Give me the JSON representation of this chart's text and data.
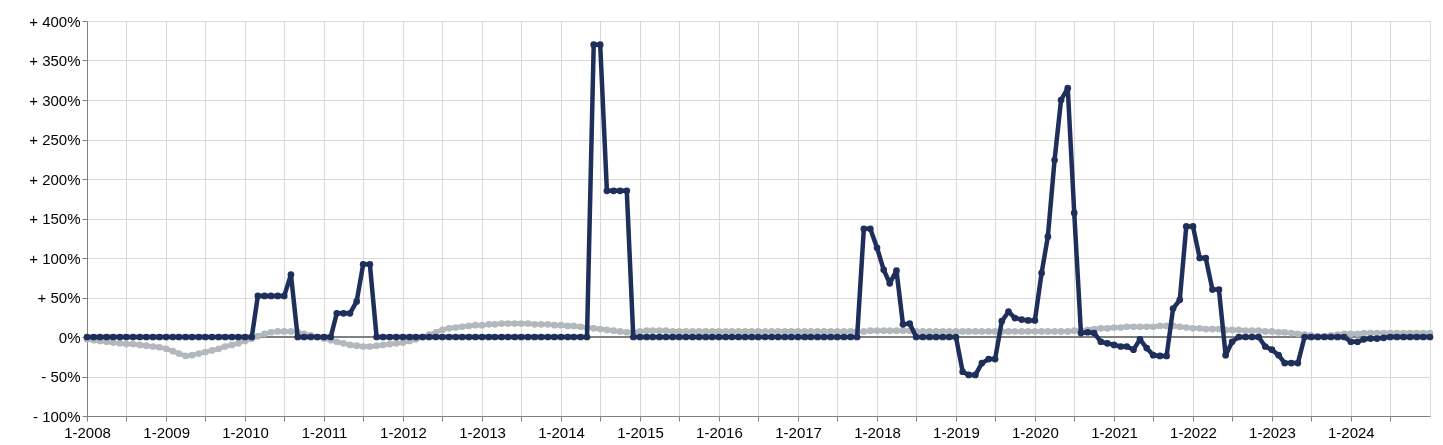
{
  "chart_data": {
    "type": "line",
    "marker": "circle",
    "grid": true,
    "x": [
      "2008-01",
      "2008-02",
      "2008-03",
      "2008-04",
      "2008-05",
      "2008-06",
      "2008-07",
      "2008-08",
      "2008-09",
      "2008-10",
      "2008-11",
      "2008-12",
      "2009-01",
      "2009-02",
      "2009-03",
      "2009-04",
      "2009-05",
      "2009-06",
      "2009-07",
      "2009-08",
      "2009-09",
      "2009-10",
      "2009-11",
      "2009-12",
      "2010-01",
      "2010-02",
      "2010-03",
      "2010-04",
      "2010-05",
      "2010-06",
      "2010-07",
      "2010-08",
      "2010-09",
      "2010-10",
      "2010-11",
      "2010-12",
      "2011-01",
      "2011-02",
      "2011-03",
      "2011-04",
      "2011-05",
      "2011-06",
      "2011-07",
      "2011-08",
      "2011-09",
      "2011-10",
      "2011-11",
      "2011-12",
      "2012-01",
      "2012-02",
      "2012-03",
      "2012-04",
      "2012-05",
      "2012-06",
      "2012-07",
      "2012-08",
      "2012-09",
      "2012-10",
      "2012-11",
      "2012-12",
      "2013-01",
      "2013-02",
      "2013-03",
      "2013-04",
      "2013-05",
      "2013-06",
      "2013-07",
      "2013-08",
      "2013-09",
      "2013-10",
      "2013-11",
      "2013-12",
      "2014-01",
      "2014-02",
      "2014-03",
      "2014-04",
      "2014-05",
      "2014-06",
      "2014-07",
      "2014-08",
      "2014-09",
      "2014-10",
      "2014-11",
      "2014-12",
      "2015-01",
      "2015-02",
      "2015-03",
      "2015-04",
      "2015-05",
      "2015-06",
      "2015-07",
      "2015-08",
      "2015-09",
      "2015-10",
      "2015-11",
      "2015-12",
      "2016-01",
      "2016-02",
      "2016-03",
      "2016-04",
      "2016-05",
      "2016-06",
      "2016-07",
      "2016-08",
      "2016-09",
      "2016-10",
      "2016-11",
      "2016-12",
      "2017-01",
      "2017-02",
      "2017-03",
      "2017-04",
      "2017-05",
      "2017-06",
      "2017-07",
      "2017-08",
      "2017-09",
      "2017-10",
      "2017-11",
      "2017-12",
      "2018-01",
      "2018-02",
      "2018-03",
      "2018-04",
      "2018-05",
      "2018-06",
      "2018-07",
      "2018-08",
      "2018-09",
      "2018-10",
      "2018-11",
      "2018-12",
      "2019-01",
      "2019-02",
      "2019-03",
      "2019-04",
      "2019-05",
      "2019-06",
      "2019-07",
      "2019-08",
      "2019-09",
      "2019-10",
      "2019-11",
      "2019-12",
      "2020-01",
      "2020-02",
      "2020-03",
      "2020-04",
      "2020-05",
      "2020-06",
      "2020-07",
      "2020-08",
      "2020-09",
      "2020-10",
      "2020-11",
      "2020-12",
      "2021-01",
      "2021-02",
      "2021-03",
      "2021-04",
      "2021-05",
      "2021-06",
      "2021-07",
      "2021-08",
      "2021-09",
      "2021-10",
      "2021-11",
      "2021-12",
      "2022-01",
      "2022-02",
      "2022-03",
      "2022-04",
      "2022-05",
      "2022-06",
      "2022-07",
      "2022-08",
      "2022-09",
      "2022-10",
      "2022-11",
      "2022-12",
      "2023-01",
      "2023-02",
      "2023-03",
      "2023-04",
      "2023-05",
      "2023-06",
      "2023-07",
      "2023-08",
      "2023-09",
      "2023-10",
      "2023-11",
      "2023-12",
      "2024-01",
      "2024-02",
      "2024-03",
      "2024-04",
      "2024-05",
      "2024-06",
      "2024-07",
      "2024-08",
      "2024-09",
      "2024-10",
      "2024-11",
      "2024-12",
      "2025-01"
    ],
    "series": [
      {
        "color": "#b3b8bd",
        "values": [
          -3,
          -4,
          -5,
          -6,
          -7,
          -8,
          -9,
          -9,
          -10,
          -11,
          -12,
          -13,
          -15,
          -18,
          -21,
          -24,
          -23,
          -21,
          -19,
          -17,
          -15,
          -12,
          -10,
          -8,
          -5,
          -2,
          1,
          4,
          6,
          7,
          7,
          7,
          6,
          4,
          2,
          0,
          -2,
          -4,
          -6,
          -8,
          -10,
          -11,
          -12,
          -12,
          -11,
          -10,
          -9,
          -8,
          -7,
          -5,
          -3,
          0,
          3,
          6,
          9,
          11,
          12,
          13,
          14,
          15,
          15,
          16,
          16,
          17,
          17,
          17,
          17,
          17,
          16,
          16,
          16,
          15,
          15,
          14,
          14,
          13,
          12,
          11,
          10,
          9,
          8,
          7,
          6,
          6,
          7,
          8,
          8,
          8,
          8,
          7,
          7,
          7,
          7,
          7,
          7,
          7,
          7,
          7,
          7,
          7,
          7,
          7,
          7,
          7,
          7,
          7,
          7,
          7,
          7,
          7,
          7,
          7,
          7,
          7,
          7,
          7,
          7,
          7,
          7,
          8,
          8,
          8,
          8,
          8,
          8,
          8,
          7,
          7,
          7,
          7,
          7,
          7,
          7,
          7,
          7,
          7,
          7,
          7,
          7,
          7,
          7,
          7,
          7,
          7,
          7,
          7,
          7,
          7,
          7,
          7,
          8,
          8,
          9,
          10,
          11,
          11,
          12,
          12,
          13,
          13,
          13,
          13,
          13,
          14,
          14,
          14,
          13,
          12,
          11,
          11,
          10,
          10,
          10,
          9,
          9,
          9,
          8,
          8,
          8,
          7,
          7,
          6,
          6,
          5,
          4,
          3,
          2,
          1,
          1,
          2,
          3,
          4,
          4,
          4,
          5,
          5,
          5,
          5,
          5,
          5,
          5,
          5,
          5,
          5,
          5
        ]
      },
      {
        "color": "#1f2f5c",
        "values": [
          0,
          0,
          0,
          0,
          0,
          0,
          0,
          0,
          0,
          0,
          0,
          0,
          0,
          0,
          0,
          0,
          0,
          0,
          0,
          0,
          0,
          0,
          0,
          0,
          0,
          0,
          52,
          52,
          52,
          52,
          52,
          79,
          0,
          0,
          0,
          0,
          0,
          0,
          30,
          30,
          30,
          45,
          92,
          92,
          0,
          0,
          0,
          0,
          0,
          0,
          0,
          0,
          0,
          0,
          0,
          0,
          0,
          0,
          0,
          0,
          0,
          0,
          0,
          0,
          0,
          0,
          0,
          0,
          0,
          0,
          0,
          0,
          0,
          0,
          0,
          0,
          0,
          370,
          370,
          185,
          185,
          185,
          185,
          0,
          0,
          0,
          0,
          0,
          0,
          0,
          0,
          0,
          0,
          0,
          0,
          0,
          0,
          0,
          0,
          0,
          0,
          0,
          0,
          0,
          0,
          0,
          0,
          0,
          0,
          0,
          0,
          0,
          0,
          0,
          0,
          0,
          0,
          0,
          137,
          137,
          113,
          85,
          68,
          84,
          16,
          17,
          0,
          0,
          0,
          0,
          0,
          0,
          0,
          -44,
          -48,
          -48,
          -33,
          -28,
          -28,
          20,
          32,
          24,
          22,
          21,
          21,
          81,
          127,
          224,
          300,
          315,
          157,
          5,
          6,
          5,
          -6,
          -8,
          -10,
          -12,
          -12,
          -16,
          -3,
          -14,
          -23,
          -24,
          -24,
          36,
          47,
          140,
          140,
          100,
          100,
          60,
          60,
          -23,
          -6,
          0,
          0,
          0,
          0,
          -12,
          -16,
          -23,
          -33,
          -33,
          -33,
          0,
          0,
          0,
          0,
          0,
          0,
          0,
          -6,
          -6,
          -3,
          -2,
          -2,
          -1,
          0,
          0,
          0,
          0,
          0,
          0,
          0
        ]
      }
    ],
    "xlim": [
      "2008-01",
      "2025-01"
    ],
    "xticks": [
      {
        "value": "2008-01",
        "label": "1-2008"
      },
      {
        "value": "2008-07",
        "label": null
      },
      {
        "value": "2009-01",
        "label": "1-2009"
      },
      {
        "value": "2009-07",
        "label": null
      },
      {
        "value": "2010-01",
        "label": "1-2010"
      },
      {
        "value": "2010-07",
        "label": null
      },
      {
        "value": "2011-01",
        "label": "1-2011"
      },
      {
        "value": "2011-07",
        "label": null
      },
      {
        "value": "2012-01",
        "label": "1-2012"
      },
      {
        "value": "2012-07",
        "label": null
      },
      {
        "value": "2013-01",
        "label": "1-2013"
      },
      {
        "value": "2013-07",
        "label": null
      },
      {
        "value": "2014-01",
        "label": "1-2014"
      },
      {
        "value": "2014-07",
        "label": null
      },
      {
        "value": "2015-01",
        "label": "1-2015"
      },
      {
        "value": "2015-07",
        "label": null
      },
      {
        "value": "2016-01",
        "label": "1-2016"
      },
      {
        "value": "2016-07",
        "label": null
      },
      {
        "value": "2017-01",
        "label": "1-2017"
      },
      {
        "value": "2017-07",
        "label": null
      },
      {
        "value": "2018-01",
        "label": "1-2018"
      },
      {
        "value": "2018-07",
        "label": null
      },
      {
        "value": "2019-01",
        "label": "1-2019"
      },
      {
        "value": "2019-07",
        "label": null
      },
      {
        "value": "2020-01",
        "label": "1-2020"
      },
      {
        "value": "2020-07",
        "label": null
      },
      {
        "value": "2021-01",
        "label": "1-2021"
      },
      {
        "value": "2021-07",
        "label": null
      },
      {
        "value": "2022-01",
        "label": "1-2022"
      },
      {
        "value": "2022-07",
        "label": null
      },
      {
        "value": "2023-01",
        "label": "1-2023"
      },
      {
        "value": "2023-07",
        "label": null
      },
      {
        "value": "2024-01",
        "label": "1-2024"
      },
      {
        "value": "2024-07",
        "label": null
      }
    ],
    "ylim": [
      -100,
      400
    ],
    "yticks": [
      {
        "value": -100,
        "label": "- 100%"
      },
      {
        "value": -50,
        "label": "- 50%"
      },
      {
        "value": 0,
        "label": "0%"
      },
      {
        "value": 50,
        "label": "+ 50%"
      },
      {
        "value": 100,
        "label": "+ 100%"
      },
      {
        "value": 150,
        "label": "+ 150%"
      },
      {
        "value": 200,
        "label": "+ 200%"
      },
      {
        "value": 250,
        "label": "+ 250%"
      },
      {
        "value": 300,
        "label": "+ 300%"
      },
      {
        "value": 350,
        "label": "+ 350%"
      },
      {
        "value": 400,
        "label": "+ 400%"
      }
    ],
    "ref_lines": [
      {
        "axis": "y",
        "value": 0,
        "color": "#808080"
      }
    ]
  }
}
